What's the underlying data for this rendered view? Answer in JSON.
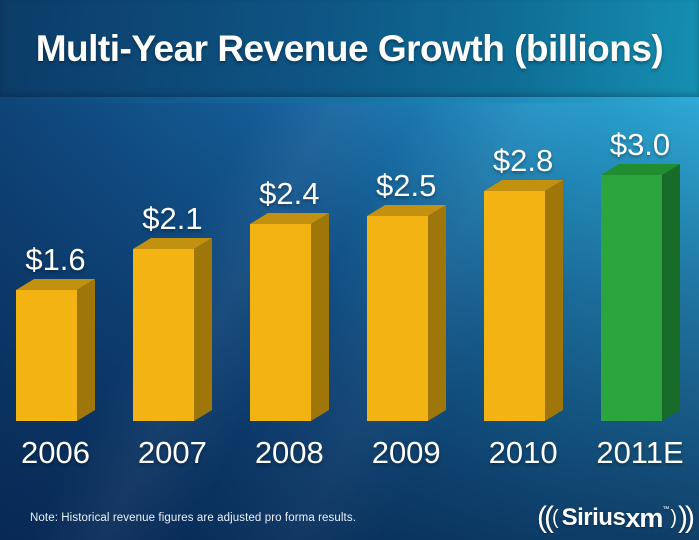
{
  "slide": {
    "title": "Multi-Year Revenue Growth (billions)",
    "footnote": "Note: Historical revenue figures are adjusted pro forma results.",
    "logo": {
      "left_outer_arcs": "((",
      "left_inner_arc": "(",
      "sirius": "Sirius",
      "xm": "xm",
      "trademark": "™",
      "right_inner_arc": ")",
      "right_outer_arcs": "))"
    }
  },
  "chart_data": {
    "type": "bar",
    "style": "3d-extruded-columns",
    "title": "Multi-Year Revenue Growth (billions)",
    "unit": "USD billions",
    "categories": [
      "2006",
      "2007",
      "2008",
      "2009",
      "2010",
      "2011E"
    ],
    "values": [
      1.6,
      2.1,
      2.4,
      2.5,
      2.8,
      3.0
    ],
    "value_labels": [
      "$1.6",
      "$2.1",
      "$2.4",
      "$2.5",
      "$2.8",
      "$3.0"
    ],
    "series": [
      {
        "name": "Revenue",
        "values": [
          1.6,
          2.1,
          2.4,
          2.5,
          2.8,
          3.0
        ]
      }
    ],
    "ylim": [
      0,
      3.2
    ],
    "axis": "none",
    "gridlines": false,
    "legend": false,
    "bar_color_roles": [
      "gold",
      "gold",
      "gold",
      "gold",
      "gold",
      "green"
    ],
    "palette": {
      "gold": {
        "front": "#F3B413",
        "top": "#C29110",
        "side": "#9E7609"
      },
      "green": {
        "front": "#2BA63C",
        "top": "#208E2F",
        "side": "#186B28"
      }
    },
    "label_color": "#FFFFFF",
    "background": {
      "top_left": "#0D3E6E",
      "top_right": "#2FA9D4",
      "bottom": "#092E5C"
    }
  }
}
